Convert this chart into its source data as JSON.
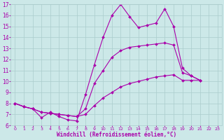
{
  "xlabel": "Windchill (Refroidissement éolien,°C)",
  "bg_color": "#cce8e8",
  "grid_color": "#aacccc",
  "line_color": "#aa00aa",
  "xlim": [
    -0.5,
    23.5
  ],
  "ylim": [
    6,
    17
  ],
  "xticks": [
    0,
    1,
    2,
    3,
    4,
    5,
    6,
    7,
    8,
    9,
    10,
    11,
    12,
    13,
    14,
    15,
    16,
    17,
    18,
    19,
    20,
    21,
    22,
    23
  ],
  "yticks": [
    6,
    7,
    8,
    9,
    10,
    11,
    12,
    13,
    14,
    15,
    16,
    17
  ],
  "line1_x": [
    0,
    1,
    2,
    3,
    4,
    5,
    6,
    7,
    8,
    9,
    10,
    11,
    12,
    13,
    14,
    15,
    16,
    17,
    18,
    19,
    20,
    21,
    22,
    23
  ],
  "line1_y": [
    8.0,
    7.7,
    7.5,
    6.7,
    7.2,
    6.8,
    6.5,
    6.4,
    8.8,
    11.5,
    14.0,
    16.0,
    17.0,
    15.9,
    14.9,
    15.1,
    15.3,
    16.6,
    15.0,
    11.2,
    10.5,
    10.1,
    null,
    null
  ],
  "line2_x": [
    0,
    1,
    2,
    3,
    4,
    5,
    6,
    7,
    8,
    9,
    10,
    11,
    12,
    13,
    14,
    15,
    16,
    17,
    18,
    19,
    20,
    21,
    22,
    23
  ],
  "line2_y": [
    8.0,
    7.7,
    7.5,
    7.2,
    7.1,
    7.0,
    6.9,
    6.8,
    7.5,
    9.8,
    11.0,
    12.2,
    12.8,
    13.1,
    13.2,
    13.3,
    13.4,
    13.5,
    13.3,
    10.8,
    10.5,
    10.1,
    null,
    null
  ],
  "line3_x": [
    0,
    1,
    2,
    3,
    4,
    5,
    6,
    7,
    8,
    9,
    10,
    11,
    12,
    13,
    14,
    15,
    16,
    17,
    18,
    19,
    20,
    21,
    22,
    23
  ],
  "line3_y": [
    8.0,
    7.7,
    7.5,
    7.2,
    7.1,
    7.0,
    6.9,
    6.8,
    7.0,
    7.8,
    8.5,
    9.0,
    9.5,
    9.8,
    10.0,
    10.2,
    10.4,
    10.5,
    10.6,
    10.1,
    10.1,
    10.1,
    null,
    null
  ]
}
